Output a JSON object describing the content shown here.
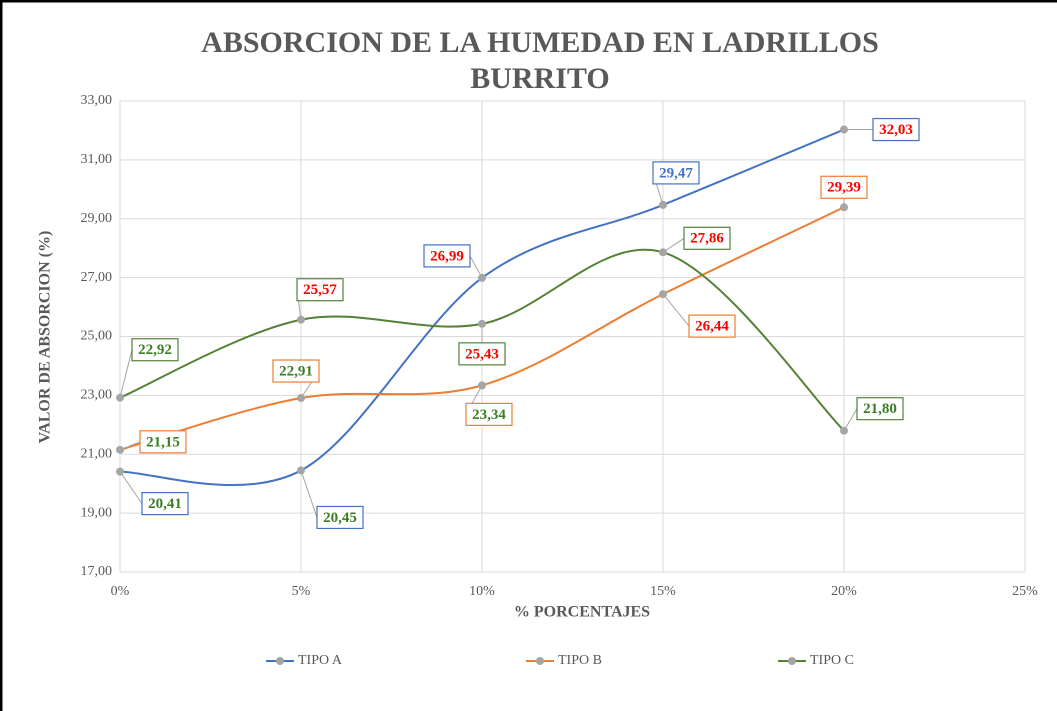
{
  "chart_data": {
    "type": "line",
    "title": "ABSORCION DE LA HUMEDAD EN LADRILLOS BURRITO",
    "xlabel": "% PORCENTAJES",
    "ylabel": "VALOR DE ABSORCION (%)",
    "x": [
      0,
      5,
      10,
      15,
      20
    ],
    "xlim": [
      0,
      25
    ],
    "xticks": [
      {
        "value": 0,
        "label": "0%"
      },
      {
        "value": 5,
        "label": "5%"
      },
      {
        "value": 10,
        "label": "10%"
      },
      {
        "value": 15,
        "label": "15%"
      },
      {
        "value": 20,
        "label": "20%"
      },
      {
        "value": 25,
        "label": "25%"
      }
    ],
    "ylim": [
      17,
      33
    ],
    "yticks": [
      {
        "value": 17,
        "label": "17,00"
      },
      {
        "value": 19,
        "label": "19,00"
      },
      {
        "value": 21,
        "label": "21,00"
      },
      {
        "value": 23,
        "label": "23,00"
      },
      {
        "value": 25,
        "label": "25,00"
      },
      {
        "value": 27,
        "label": "27,00"
      },
      {
        "value": 29,
        "label": "29,00"
      },
      {
        "value": 31,
        "label": "31,00"
      },
      {
        "value": 33,
        "label": "33,00"
      }
    ],
    "grid": true,
    "smooth": true,
    "legend": "bottom",
    "series": [
      {
        "name": "TIPO A",
        "color": "#4472c4",
        "values": [
          20.41,
          20.45,
          26.99,
          29.47,
          32.03
        ],
        "value_labels": [
          "20,41",
          "20,45",
          "26,99",
          "29,47",
          "32,03"
        ],
        "label_colors": [
          "#3a7d22",
          "#3a7d22",
          "#ff0000",
          "#4472c4",
          "#ff0000"
        ]
      },
      {
        "name": "TIPO B",
        "color": "#ed7d31",
        "values": [
          21.15,
          22.91,
          23.34,
          26.44,
          29.39
        ],
        "value_labels": [
          "21,15",
          "22,91",
          "23,34",
          "26,44",
          "29,39"
        ],
        "label_colors": [
          "#3a7d22",
          "#3a7d22",
          "#3a7d22",
          "#ff0000",
          "#ff0000"
        ]
      },
      {
        "name": "TIPO C",
        "color": "#548235",
        "values": [
          22.92,
          25.57,
          25.43,
          27.86,
          21.8
        ],
        "value_labels": [
          "22,92",
          "25,57",
          "25,43",
          "27,86",
          "21,80"
        ],
        "label_colors": [
          "#3a7d22",
          "#ff0000",
          "#ff0000",
          "#ff0000",
          "#3a7d22"
        ]
      }
    ]
  }
}
